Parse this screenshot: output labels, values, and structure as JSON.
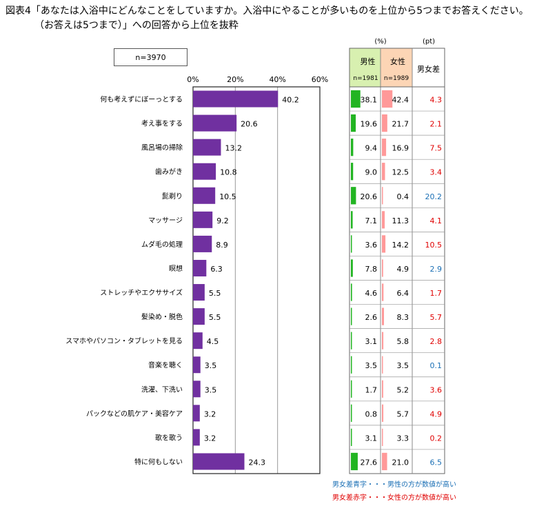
{
  "title": {
    "line1": "図表4「あなたは入浴中にどんなことをしていますか。入浴中にやることが多いものを上位から5つまでお答えください。",
    "line2": "（お答えは5つまで）」への回答から上位を抜粋"
  },
  "sample_label": "n=3970",
  "table": {
    "unit_pct": "(%)",
    "unit_pt": "(pt)",
    "male_header": "男性",
    "male_n": "n=1981",
    "female_header": "女性",
    "female_n": "n=1989",
    "diff_header": "男女差"
  },
  "notes": {
    "blue": "男女差青字・・・男性の方が数値が高い",
    "red": "男女差赤字・・・女性の方が数値が高い"
  },
  "colors": {
    "bar": "#7030a0",
    "male": "#22b422",
    "female": "#ff9999",
    "male_header_bg": "#d8f0b0",
    "female_header_bg": "#fcd5b5",
    "diff_male": "#1a6fb5",
    "diff_female": "#e00000"
  },
  "chart_data": {
    "type": "bar",
    "orientation": "horizontal",
    "categories": [
      "何も考えずにぼーっとする",
      "考え事をする",
      "風呂場の掃除",
      "歯みがき",
      "髭剃り",
      "マッサージ",
      "ムダ毛の処理",
      "瞑想",
      "ストレッチやエクササイズ",
      "髪染め・脱色",
      "スマホやパソコン・タブレットを見る",
      "音楽を聴く",
      "洗濯、下洗い",
      "パックなどの肌ケア・美容ケア",
      "歌を歌う",
      "特に何もしない"
    ],
    "values": [
      40.2,
      20.6,
      13.2,
      10.8,
      10.5,
      9.2,
      8.9,
      6.3,
      5.5,
      5.5,
      4.5,
      3.5,
      3.5,
      3.2,
      3.2,
      24.3
    ],
    "value_labels": [
      "40.2",
      "20.6",
      "13.2",
      "10.8",
      "10.5",
      "9.2",
      "8.9",
      "6.3",
      "5.5",
      "5.5",
      "4.5",
      "3.5",
      "3.5",
      "3.2",
      "3.2",
      "24.3"
    ],
    "xlim": [
      0,
      60
    ],
    "xticks": [
      "0%",
      "20%",
      "40%",
      "60%"
    ],
    "grid": true,
    "male": [
      "38.1",
      "19.6",
      "9.4",
      "9.0",
      "20.6",
      "7.1",
      "3.6",
      "7.8",
      "4.6",
      "2.6",
      "3.1",
      "3.5",
      "1.7",
      "0.8",
      "3.1",
      "27.6"
    ],
    "female": [
      "42.4",
      "21.7",
      "16.9",
      "12.5",
      "0.4",
      "11.3",
      "14.2",
      "4.9",
      "6.4",
      "8.3",
      "5.8",
      "3.5",
      "5.2",
      "5.7",
      "3.3",
      "21.0"
    ],
    "diff": [
      "4.3",
      "2.1",
      "7.5",
      "3.4",
      "20.2",
      "4.1",
      "10.5",
      "2.9",
      "1.7",
      "5.7",
      "2.8",
      "0.1",
      "3.6",
      "4.9",
      "0.2",
      "6.5"
    ],
    "diff_color": [
      "female",
      "female",
      "female",
      "female",
      "male",
      "female",
      "female",
      "male",
      "female",
      "female",
      "female",
      "male",
      "female",
      "female",
      "female",
      "male"
    ]
  }
}
